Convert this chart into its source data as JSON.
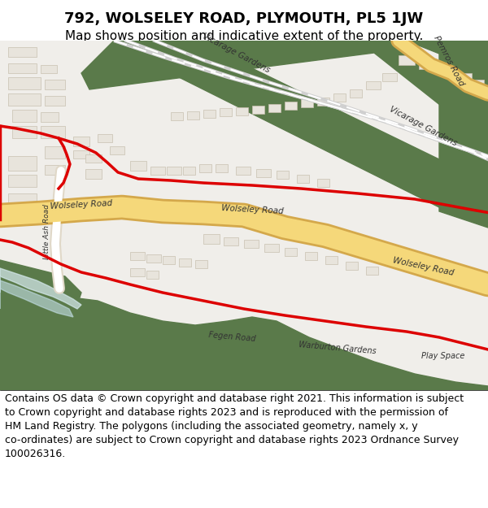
{
  "title": "792, WOLSELEY ROAD, PLYMOUTH, PL5 1JW",
  "subtitle": "Map shows position and indicative extent of the property.",
  "footer_line1": "Contains OS data © Crown copyright and database right 2021. This information is subject",
  "footer_line2": "to Crown copyright and database rights 2023 and is reproduced with the permission of",
  "footer_line3": "HM Land Registry. The polygons (including the associated geometry, namely x, y",
  "footer_line4": "co-ordinates) are subject to Crown copyright and database rights 2023 Ordnance Survey",
  "footer_line5": "100026316.",
  "bg_color": "#f5f5f0",
  "map_bg": "#f0eeea",
  "green_color": "#5a7a4a",
  "road_yellow": "#f5d87a",
  "road_outline": "#d4a84b",
  "building_fill": "#e8e4dc",
  "building_outline": "#c8c0b0",
  "red_line": "#dd0000",
  "water_fill": "#c8dce8",
  "water_blue": "#a0c0d0",
  "title_fontsize": 13,
  "subtitle_fontsize": 11,
  "footer_fontsize": 9
}
